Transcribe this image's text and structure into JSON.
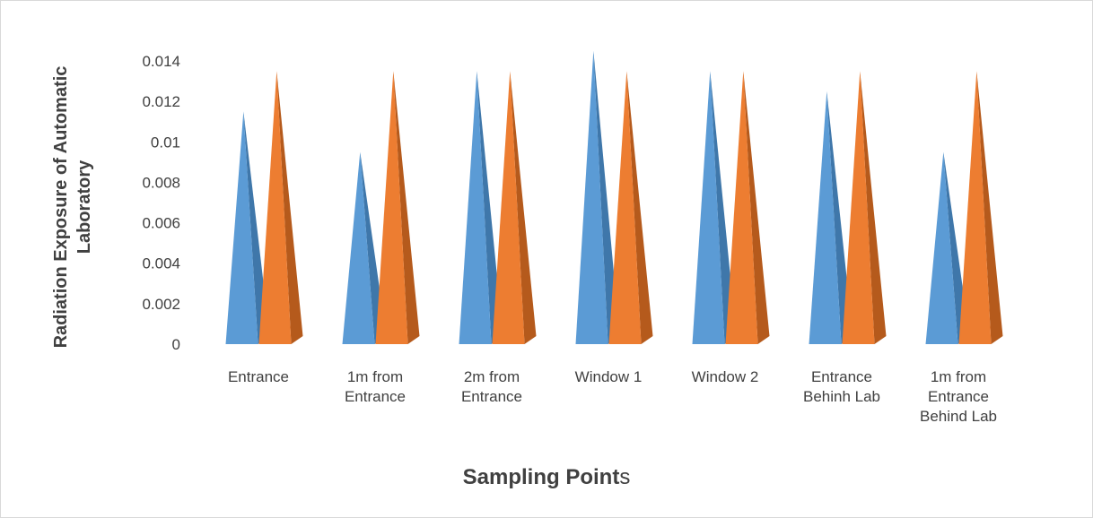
{
  "chart_data": {
    "type": "bar",
    "categories": [
      [
        "Entrance"
      ],
      [
        "1m from",
        "Entrance"
      ],
      [
        "2m from",
        "Entrance"
      ],
      [
        "Window 1"
      ],
      [
        "Window 2"
      ],
      [
        "Entrance",
        "Behinh Lab"
      ],
      [
        "1m  from",
        "Entrance",
        "Behind Lab"
      ]
    ],
    "series": [
      {
        "values": [
          0.0115,
          0.0095,
          0.0135,
          0.0145,
          0.0135,
          0.0125,
          0.0095
        ]
      },
      {
        "values": [
          0.0135,
          0.0135,
          0.0135,
          0.0135,
          0.0135,
          0.0135,
          0.0135
        ]
      }
    ],
    "yticks": [
      "0",
      "0.002",
      "0.004",
      "0.006",
      "0.008",
      "0.01",
      "0.012",
      "0.014"
    ],
    "ylim": [
      0,
      0.014
    ],
    "ylabel": "Radiation Exposure of Automatic Laboratory",
    "xlabel_bold": "Sampling Point",
    "xlabel_rest": "s",
    "colors": {
      "series1_front": "#5b9bd5",
      "series1_side": "#3f77aa",
      "series2_front": "#ed7d31",
      "series2_side": "#b55a1c",
      "axis_text": "#404040"
    }
  }
}
